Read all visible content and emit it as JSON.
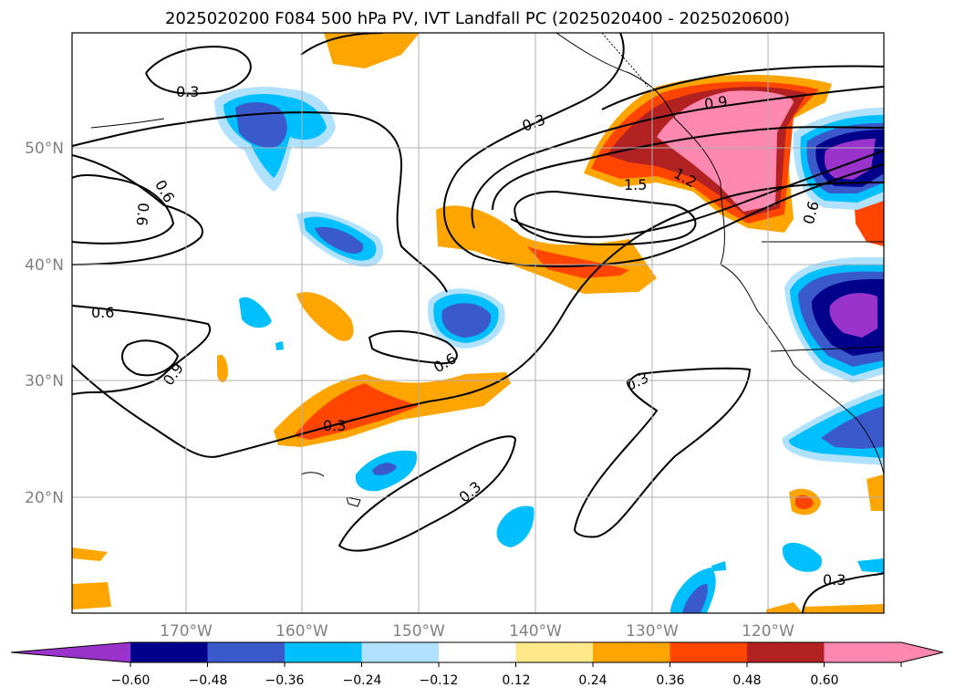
{
  "title": "2025020200 F084 500 hPa PV, IVT Landfall PC (2025020400 - 2025020600)",
  "lat_labels": [
    "50°N",
    "40°N",
    "30°N",
    "20°N"
  ],
  "lon_labels": [
    "170°W",
    "160°W",
    "150°W",
    "140°W",
    "130°W",
    "120°W"
  ],
  "contour_labels": [
    "0.3",
    "0.3",
    "0.9",
    "1.5",
    "1.2",
    "0.6",
    "0.6",
    "0.6",
    "0.6",
    "0.9",
    "0.6",
    "0.3",
    "0.3",
    "0.3",
    "0.3"
  ],
  "colorbar": {
    "tick_labels": [
      "−0.60",
      "−0.48",
      "−0.36",
      "−0.24",
      "−0.12",
      "0.12",
      "0.24",
      "0.36",
      "0.48",
      "0.60"
    ],
    "colors": [
      "#9933cc",
      "#00008b",
      "#3a5acc",
      "#00bfff",
      "#b0e2ff",
      "#ffffff",
      "#ffe88a",
      "#ffa500",
      "#ff4500",
      "#b22222",
      "#ff88b0",
      "#ff88b0"
    ]
  }
}
